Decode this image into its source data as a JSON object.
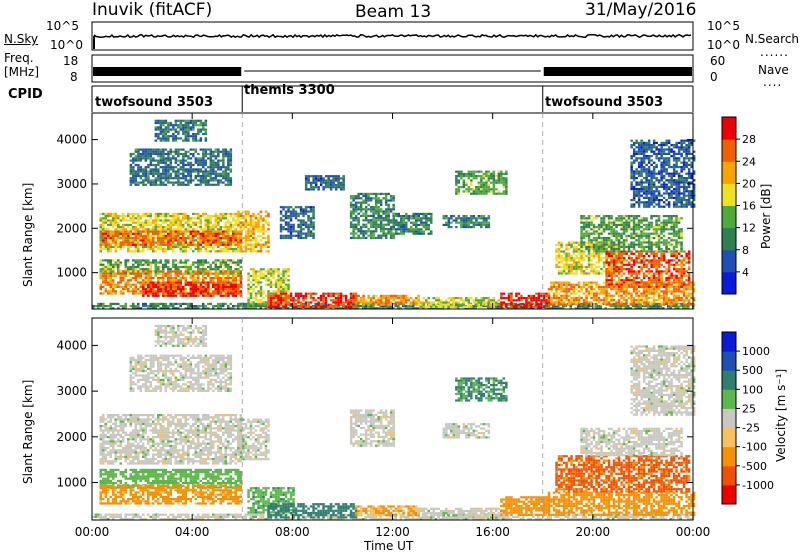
{
  "header": {
    "station": "Inuvik (fitACF)",
    "beam": "Beam 13",
    "date": "31/May/2016"
  },
  "summary_panels": {
    "nsky_label": "N.Sky",
    "nsky_ticks": [
      "10^5",
      "10^0"
    ],
    "nsearch_label": "N.Search",
    "nsearch_ticks": [
      "10^5",
      "10^0"
    ],
    "freq_label": "Freq.",
    "freq_unit": "[MHz]",
    "freq_ticks": [
      "18",
      "8"
    ],
    "nave_label": "Nave",
    "nave_ticks": [
      "60",
      "0"
    ],
    "cpid_label": "CPID",
    "cpid_programs": [
      {
        "name": "twofsound 3503",
        "start_hour": 0,
        "end_hour": 6
      },
      {
        "name": "themis 3300",
        "start_hour": 6,
        "end_hour": 18
      },
      {
        "name": "twofsound 3503",
        "start_hour": 18,
        "end_hour": 24
      }
    ]
  },
  "time_axis": {
    "title": "Time UT",
    "ticks": [
      "00:00",
      "04:00",
      "08:00",
      "12:00",
      "16:00",
      "20:00",
      "00:00"
    ]
  },
  "chart_data": [
    {
      "type": "heatmap",
      "name": "power",
      "ylabel": "Slant Range [km]",
      "yticks": [
        1000,
        2000,
        3000,
        4000
      ],
      "ylim": [
        180,
        4600
      ],
      "xlim_hours": [
        0,
        24
      ],
      "colorbar_label": "Power [dB]",
      "colorbar_ticks": [
        "4",
        "8",
        "12",
        "16",
        "20",
        "24",
        "28"
      ],
      "colorscale": [
        "#0a1adc",
        "#1e4fb4",
        "#2f7f4f",
        "#4faa3c",
        "#f0e020",
        "#f7a400",
        "#f06000",
        "#ee0000"
      ],
      "clim": [
        0,
        30
      ],
      "regions": [
        {
          "t0": 0.3,
          "t1": 5.9,
          "r0": 1500,
          "r1": 2350,
          "v": 17
        },
        {
          "t0": 0.3,
          "t1": 5.9,
          "r0": 1650,
          "r1": 1950,
          "v": 24
        },
        {
          "t0": 0.3,
          "t1": 5.9,
          "r0": 1000,
          "r1": 1300,
          "v": 12
        },
        {
          "t0": 0.3,
          "t1": 5.9,
          "r0": 550,
          "r1": 1050,
          "v": 22
        },
        {
          "t0": 2.0,
          "t1": 5.9,
          "r0": 500,
          "r1": 800,
          "v": 28
        },
        {
          "t0": 0.0,
          "t1": 24,
          "r0": 200,
          "r1": 320,
          "v": 10
        },
        {
          "t0": 5.8,
          "t1": 7.0,
          "r0": 1500,
          "r1": 2400,
          "v": 20
        },
        {
          "t0": 6.2,
          "t1": 7.8,
          "r0": 300,
          "r1": 1100,
          "v": 16
        },
        {
          "t0": 7.0,
          "t1": 10.5,
          "r0": 250,
          "r1": 550,
          "v": 27
        },
        {
          "t0": 10.5,
          "t1": 13.0,
          "r0": 300,
          "r1": 500,
          "v": 22
        },
        {
          "t0": 13.0,
          "t1": 16.3,
          "r0": 250,
          "r1": 450,
          "v": 17
        },
        {
          "t0": 16.3,
          "t1": 18.2,
          "r0": 250,
          "r1": 550,
          "v": 28
        },
        {
          "t0": 10.3,
          "t1": 12.0,
          "r0": 1800,
          "r1": 2800,
          "v": 10
        },
        {
          "t0": 12.0,
          "t1": 13.5,
          "r0": 1900,
          "r1": 2350,
          "v": 9
        },
        {
          "t0": 14.0,
          "t1": 15.8,
          "r0": 2050,
          "r1": 2300,
          "v": 9
        },
        {
          "t0": 7.5,
          "t1": 8.8,
          "r0": 1800,
          "r1": 2500,
          "v": 7
        },
        {
          "t0": 18.2,
          "t1": 24,
          "r0": 300,
          "r1": 800,
          "v": 22
        },
        {
          "t0": 18.5,
          "t1": 21.0,
          "r0": 1000,
          "r1": 1700,
          "v": 17
        },
        {
          "t0": 20.5,
          "t1": 23.8,
          "r0": 700,
          "r1": 1500,
          "v": 25
        },
        {
          "t0": 19.5,
          "t1": 23.5,
          "r0": 1500,
          "r1": 2300,
          "v": 12
        },
        {
          "t0": 1.5,
          "t1": 5.5,
          "r0": 3000,
          "r1": 3800,
          "v": 8
        },
        {
          "t0": 2.5,
          "t1": 4.5,
          "r0": 4000,
          "r1": 4450,
          "v": 9
        },
        {
          "t0": 14.5,
          "t1": 16.5,
          "r0": 2800,
          "r1": 3300,
          "v": 12
        },
        {
          "t0": 21.5,
          "t1": 24,
          "r0": 2500,
          "r1": 4000,
          "v": 6
        },
        {
          "t0": 8.5,
          "t1": 10.0,
          "r0": 2900,
          "r1": 3200,
          "v": 7
        }
      ]
    },
    {
      "type": "heatmap",
      "name": "velocity",
      "ylabel": "Slant Range [km]",
      "yticks": [
        1000,
        2000,
        3000,
        4000
      ],
      "ylim": [
        180,
        4600
      ],
      "xlim_hours": [
        0,
        24
      ],
      "colorbar_label": "Velocity [m s⁻¹]",
      "colorbar_ticks": [
        "1000",
        "500",
        "100",
        "25",
        "-25",
        "-100",
        "-500",
        "-1000"
      ],
      "colorscale": [
        "#ee0000",
        "#f05000",
        "#f79000",
        "#f7c060",
        "#c8c8c0",
        "#5cb84a",
        "#2f7f6f",
        "#1e4fb4",
        "#0a1adc"
      ],
      "clim": [
        -1000,
        1000
      ],
      "regions": [
        {
          "t0": 0.3,
          "t1": 5.9,
          "r0": 1400,
          "r1": 2500,
          "v": 0
        },
        {
          "t0": 0.3,
          "t1": 5.9,
          "r0": 900,
          "r1": 1300,
          "v": 60
        },
        {
          "t0": 0.3,
          "t1": 5.9,
          "r0": 550,
          "r1": 950,
          "v": -150
        },
        {
          "t0": 0.0,
          "t1": 24,
          "r0": 200,
          "r1": 320,
          "v": 0
        },
        {
          "t0": 5.8,
          "t1": 7.0,
          "r0": 1500,
          "r1": 2400,
          "v": 0
        },
        {
          "t0": 6.2,
          "t1": 8.0,
          "r0": 350,
          "r1": 900,
          "v": 80
        },
        {
          "t0": 7.0,
          "t1": 10.5,
          "r0": 250,
          "r1": 550,
          "v": 180
        },
        {
          "t0": 10.5,
          "t1": 13.0,
          "r0": 300,
          "r1": 500,
          "v": -120
        },
        {
          "t0": 13.0,
          "t1": 16.3,
          "r0": 250,
          "r1": 450,
          "v": 0
        },
        {
          "t0": 16.3,
          "t1": 18.2,
          "r0": 300,
          "r1": 700,
          "v": -200
        },
        {
          "t0": 10.3,
          "t1": 12.0,
          "r0": 1800,
          "r1": 2600,
          "v": 0
        },
        {
          "t0": 14.0,
          "t1": 15.8,
          "r0": 2000,
          "r1": 2300,
          "v": 0
        },
        {
          "t0": 18.2,
          "t1": 24,
          "r0": 300,
          "r1": 800,
          "v": -300
        },
        {
          "t0": 18.5,
          "t1": 23.8,
          "r0": 800,
          "r1": 1600,
          "v": -650
        },
        {
          "t0": 19.5,
          "t1": 23.5,
          "r0": 1600,
          "r1": 2200,
          "v": 0
        },
        {
          "t0": 1.5,
          "t1": 5.5,
          "r0": 3000,
          "r1": 3800,
          "v": 0
        },
        {
          "t0": 2.5,
          "t1": 4.5,
          "r0": 4000,
          "r1": 4450,
          "v": 0
        },
        {
          "t0": 14.5,
          "t1": 16.5,
          "r0": 2800,
          "r1": 3300,
          "v": 120
        },
        {
          "t0": 21.5,
          "t1": 24,
          "r0": 2500,
          "r1": 4000,
          "v": 0
        }
      ]
    }
  ]
}
